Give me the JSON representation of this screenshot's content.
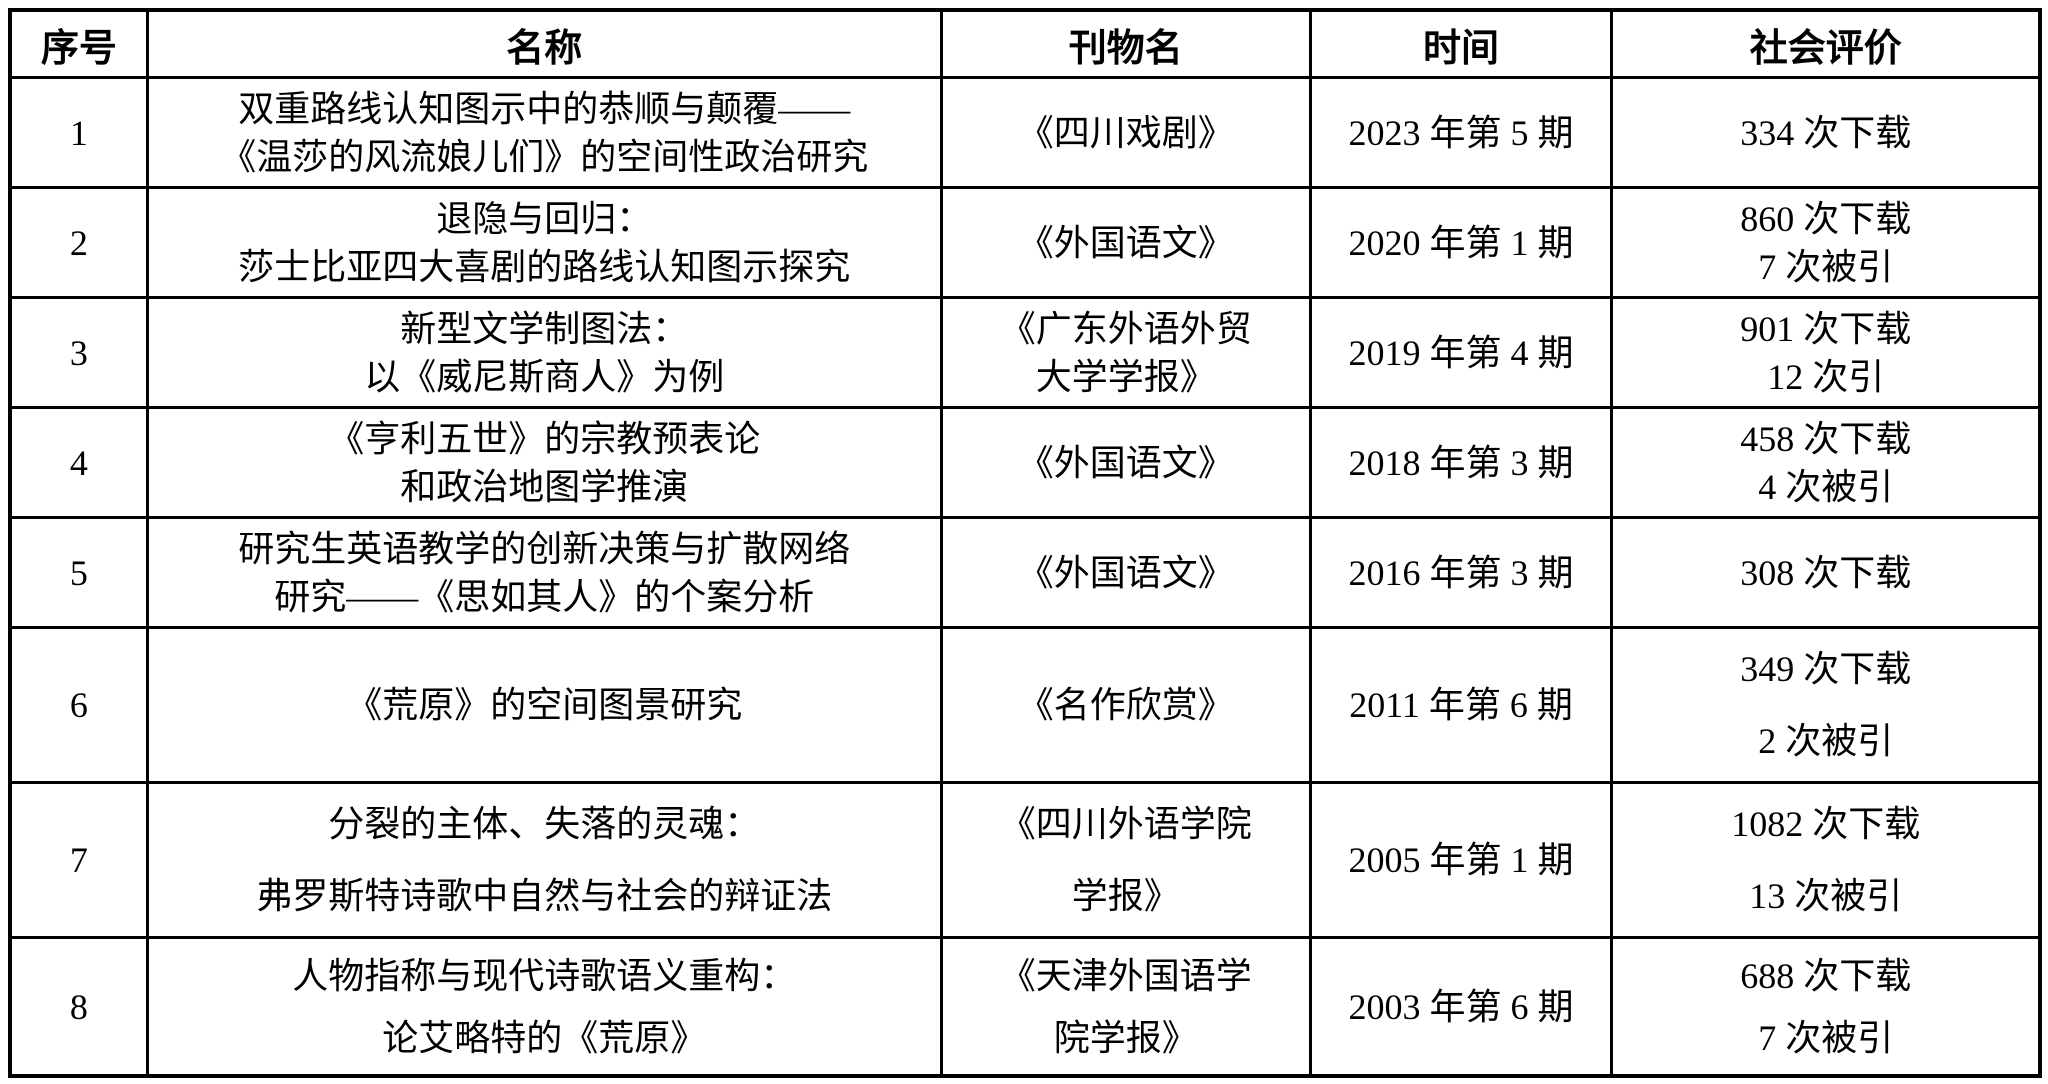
{
  "table": {
    "columns": [
      {
        "label": "序号"
      },
      {
        "label": "名称"
      },
      {
        "label": "刊物名"
      },
      {
        "label": "时间"
      },
      {
        "label": "社会评价"
      }
    ],
    "rows": [
      {
        "no": "1",
        "title_lines": [
          "双重路线认知图示中的恭顺与颠覆——",
          "《温莎的风流娘儿们》的空间性政治研究"
        ],
        "journal_lines": [
          "《四川戏剧》"
        ],
        "time": "2023 年第 5 期",
        "eval_lines": [
          "334 次下载"
        ]
      },
      {
        "no": "2",
        "title_lines": [
          "退隐与回归：",
          "莎士比亚四大喜剧的路线认知图示探究"
        ],
        "journal_lines": [
          "《外国语文》"
        ],
        "time": "2020 年第 1 期",
        "eval_lines": [
          "860 次下载",
          "7 次被引"
        ]
      },
      {
        "no": "3",
        "title_lines": [
          "新型文学制图法：",
          "以《威尼斯商人》为例"
        ],
        "journal_lines": [
          "《广东外语外贸",
          "大学学报》"
        ],
        "time": "2019 年第 4 期",
        "eval_lines": [
          "901 次下载",
          "12 次引"
        ]
      },
      {
        "no": "4",
        "title_lines": [
          "《亨利五世》的宗教预表论",
          "和政治地图学推演"
        ],
        "journal_lines": [
          "《外国语文》"
        ],
        "time": "2018 年第 3 期",
        "eval_lines": [
          "458 次下载",
          "4 次被引"
        ]
      },
      {
        "no": "5",
        "title_lines": [
          "研究生英语教学的创新决策与扩散网络",
          "研究——《思如其人》的个案分析"
        ],
        "journal_lines": [
          "《外国语文》"
        ],
        "time": "2016 年第 3 期",
        "eval_lines": [
          "308 次下载"
        ]
      },
      {
        "no": "6",
        "title_lines": [
          "《荒原》的空间图景研究"
        ],
        "journal_lines": [
          "《名作欣赏》"
        ],
        "time": "2011 年第 6 期",
        "eval_lines": [
          "349 次下载",
          "2 次被引"
        ]
      },
      {
        "no": "7",
        "title_lines": [
          "分裂的主体、失落的灵魂：",
          "弗罗斯特诗歌中自然与社会的辩证法"
        ],
        "journal_lines": [
          "《四川外语学院",
          "学报》"
        ],
        "time": "2005 年第 1 期",
        "eval_lines": [
          "1082 次下载",
          "13 次被引"
        ]
      },
      {
        "no": "8",
        "title_lines": [
          "人物指称与现代诗歌语义重构：",
          "论艾略特的《荒原》"
        ],
        "journal_lines": [
          "《天津外国语学",
          "院学报》"
        ],
        "time": "2003 年第 6 期",
        "eval_lines": [
          "688 次下载",
          "7 次被引"
        ]
      }
    ]
  }
}
